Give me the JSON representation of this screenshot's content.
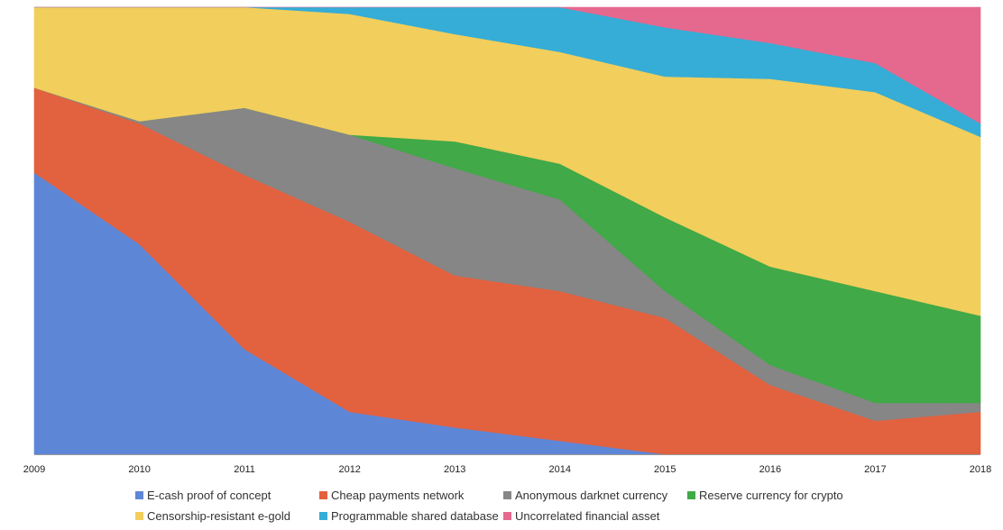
{
  "chart_data": {
    "type": "area",
    "stacked": true,
    "normalized_percent": true,
    "title": "",
    "xlabel": "",
    "ylabel": "",
    "ylim": [
      0,
      100
    ],
    "grid": false,
    "legend_position": "bottom",
    "x": [
      "2009",
      "2010",
      "2011",
      "2012",
      "2013",
      "2014",
      "2015",
      "2016",
      "2017",
      "2018"
    ],
    "series": [
      {
        "name": "E-cash proof of concept",
        "color": "#5E86D6",
        "values": [
          63,
          47,
          23.5,
          9.5,
          6,
          3,
          0,
          0,
          0,
          0
        ]
      },
      {
        "name": "Cheap payments network",
        "color": "#E2613F",
        "values": [
          19,
          27,
          39,
          42.5,
          34,
          33.5,
          30.5,
          15.5,
          7.5,
          9.5
        ]
      },
      {
        "name": "Anonymous darknet currency",
        "color": "#868686",
        "values": [
          0,
          0.5,
          15,
          19.5,
          24,
          20.5,
          6,
          4.5,
          4,
          2
        ]
      },
      {
        "name": "Reserve currency for crypto",
        "color": "#41A947",
        "values": [
          0,
          0,
          0,
          0,
          6,
          8,
          16.5,
          22,
          25,
          19.5
        ]
      },
      {
        "name": "Censorship-resistant e-gold",
        "color": "#F2CE5C",
        "values": [
          18,
          25.5,
          22.5,
          27,
          24,
          25,
          31.5,
          42,
          44.5,
          40
        ]
      },
      {
        "name": "Programmable shared database",
        "color": "#35ADD6",
        "values": [
          0,
          0,
          0,
          1.5,
          6,
          10,
          11,
          8,
          6.5,
          3
        ]
      },
      {
        "name": "Uncorrelated financial asset",
        "color": "#E5688F",
        "values": [
          0,
          0,
          0,
          0,
          0,
          0,
          4.5,
          8,
          12.5,
          26
        ]
      }
    ]
  }
}
